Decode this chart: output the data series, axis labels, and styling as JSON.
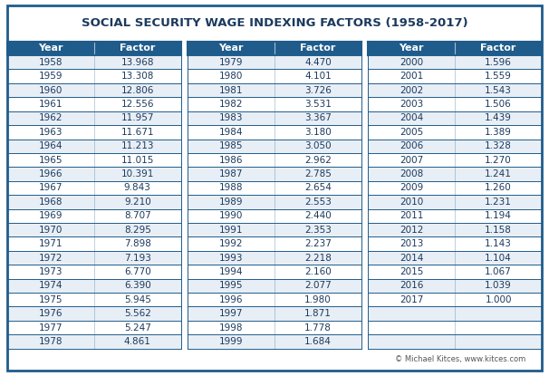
{
  "title": "SOCIAL SECURITY WAGE INDEXING FACTORS (1958-2017)",
  "title_color": "#1c3a5e",
  "header_bg": "#1f5c8b",
  "header_text": "#ffffff",
  "row_bg_odd": "#e8eef5",
  "row_bg_even": "#ffffff",
  "border_color": "#1f5c8b",
  "text_color": "#1c3a5e",
  "footer_text": "© Michael Kitces, www.kitces.com",
  "col1": [
    [
      1958,
      "13.968"
    ],
    [
      1959,
      "13.308"
    ],
    [
      1960,
      "12.806"
    ],
    [
      1961,
      "12.556"
    ],
    [
      1962,
      "11.957"
    ],
    [
      1963,
      "11.671"
    ],
    [
      1964,
      "11.213"
    ],
    [
      1965,
      "11.015"
    ],
    [
      1966,
      "10.391"
    ],
    [
      1967,
      "9.843"
    ],
    [
      1968,
      "9.210"
    ],
    [
      1969,
      "8.707"
    ],
    [
      1970,
      "8.295"
    ],
    [
      1971,
      "7.898"
    ],
    [
      1972,
      "7.193"
    ],
    [
      1973,
      "6.770"
    ],
    [
      1974,
      "6.390"
    ],
    [
      1975,
      "5.945"
    ],
    [
      1976,
      "5.562"
    ],
    [
      1977,
      "5.247"
    ],
    [
      1978,
      "4.861"
    ]
  ],
  "col2": [
    [
      1979,
      "4.470"
    ],
    [
      1980,
      "4.101"
    ],
    [
      1981,
      "3.726"
    ],
    [
      1982,
      "3.531"
    ],
    [
      1983,
      "3.367"
    ],
    [
      1984,
      "3.180"
    ],
    [
      1985,
      "3.050"
    ],
    [
      1986,
      "2.962"
    ],
    [
      1987,
      "2.785"
    ],
    [
      1988,
      "2.654"
    ],
    [
      1989,
      "2.553"
    ],
    [
      1990,
      "2.440"
    ],
    [
      1991,
      "2.353"
    ],
    [
      1992,
      "2.237"
    ],
    [
      1993,
      "2.218"
    ],
    [
      1994,
      "2.160"
    ],
    [
      1995,
      "2.077"
    ],
    [
      1996,
      "1.980"
    ],
    [
      1997,
      "1.871"
    ],
    [
      1998,
      "1.778"
    ],
    [
      1999,
      "1.684"
    ]
  ],
  "col3": [
    [
      2000,
      "1.596"
    ],
    [
      2001,
      "1.559"
    ],
    [
      2002,
      "1.543"
    ],
    [
      2003,
      "1.506"
    ],
    [
      2004,
      "1.439"
    ],
    [
      2005,
      "1.389"
    ],
    [
      2006,
      "1.328"
    ],
    [
      2007,
      "1.270"
    ],
    [
      2008,
      "1.241"
    ],
    [
      2009,
      "1.260"
    ],
    [
      2010,
      "1.231"
    ],
    [
      2011,
      "1.194"
    ],
    [
      2012,
      "1.158"
    ],
    [
      2013,
      "1.143"
    ],
    [
      2014,
      "1.104"
    ],
    [
      2015,
      "1.067"
    ],
    [
      2016,
      "1.039"
    ],
    [
      2017,
      "1.000"
    ]
  ],
  "figsize": [
    6.06,
    4.15
  ],
  "dpi": 100
}
